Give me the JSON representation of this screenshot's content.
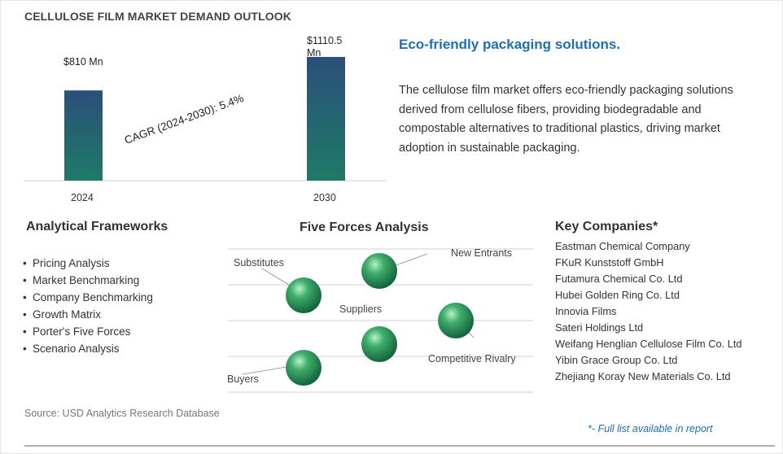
{
  "title": "CELLULOSE FILM MARKET DEMAND OUTLOOK",
  "chart_data": {
    "type": "bar",
    "categories": [
      "2024",
      "2030"
    ],
    "values": [
      810,
      1110.5
    ],
    "value_labels": [
      "$810 Mn",
      "$1110.5 Mn"
    ],
    "annotation": "CAGR (2024-2030):  5.4%",
    "ylim": [
      0,
      1180
    ],
    "colors": {
      "bar_top": "#2b4f7a",
      "bar_bottom": "#1f7a68"
    }
  },
  "headline": "Eco-friendly packaging solutions.",
  "description": "The cellulose film market offers eco-friendly packaging solutions derived from cellulose fibers, providing biodegradable and compostable alternatives to traditional plastics, driving market adoption in sustainable packaging.",
  "frameworks": {
    "heading": "Analytical Frameworks",
    "items": [
      "Pricing Analysis",
      "Market Benchmarking",
      "Company Benchmarking",
      "Growth Matrix",
      "Porter's Five Forces",
      "Scenario Analysis"
    ]
  },
  "five_forces": {
    "heading": "Five Forces Analysis",
    "labels": {
      "substitutes": "Substitutes",
      "new_entrants": "New Entrants",
      "suppliers": "Suppliers",
      "competitive_rivalry": "Competitive Rivalry",
      "buyers": "Buyers"
    }
  },
  "companies": {
    "heading": "Key Companies*",
    "items": [
      "Eastman Chemical Company",
      "FKuR Kunststoff GmbH",
      "Futamura Chemical Co. Ltd",
      "Hubei Golden Ring Co. Ltd",
      "Innovia Films",
      "Sateri Holdings Ltd",
      "Weifang Henglian Cellulose Film Co. Ltd",
      "Yibin Grace Group Co. Ltd",
      "Zhejiang Koray New Materials Co. Ltd"
    ]
  },
  "source": "Source: USD Analytics Research Database",
  "footnote": "*- Full list available in report",
  "colors": {
    "accent": "#1f6fb2",
    "sphere": "#2e9a5e"
  }
}
